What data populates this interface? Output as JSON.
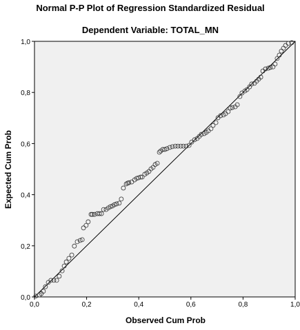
{
  "chart_data": {
    "type": "scatter",
    "title": "Normal P-P Plot of Regression Standardized Residual",
    "subtitle": "Dependent Variable: TOTAL_MN",
    "x_label": "Observed Cum Prob",
    "y_label": "Expected Cum Prob",
    "xlim": [
      0,
      1
    ],
    "ylim": [
      0,
      1
    ],
    "xticks": [
      {
        "value": 0,
        "label": "0,0"
      },
      {
        "value": 0.2,
        "label": "0,2"
      },
      {
        "value": 0.4,
        "label": "0,4"
      },
      {
        "value": 0.6,
        "label": "0,6"
      },
      {
        "value": 0.8,
        "label": "0,8"
      },
      {
        "value": 1,
        "label": "1,0"
      }
    ],
    "yticks": [
      {
        "value": 0,
        "label": "0,0"
      },
      {
        "value": 0.2,
        "label": "0,2"
      },
      {
        "value": 0.4,
        "label": "0,4"
      },
      {
        "value": 0.6,
        "label": "0,6"
      },
      {
        "value": 0.8,
        "label": "0,8"
      },
      {
        "value": 1,
        "label": "1,0"
      }
    ],
    "reference_line": true,
    "color": "#333333",
    "background": "#f0f0f0",
    "series": [
      {
        "x": [
          0.005,
          0.019,
          0.026,
          0.034,
          0.042,
          0.053,
          0.063,
          0.074,
          0.085,
          0.095,
          0.106,
          0.114,
          0.122,
          0.132,
          0.143,
          0.153,
          0.164,
          0.175,
          0.183,
          0.188,
          0.198,
          0.206,
          0.217,
          0.222,
          0.23,
          0.241,
          0.249,
          0.257,
          0.265,
          0.275,
          0.283,
          0.291,
          0.299,
          0.307,
          0.315,
          0.325,
          0.333,
          0.341,
          0.352,
          0.357,
          0.362,
          0.373,
          0.384,
          0.392,
          0.399,
          0.407,
          0.413,
          0.423,
          0.431,
          0.439,
          0.447,
          0.455,
          0.463,
          0.471,
          0.479,
          0.484,
          0.492,
          0.5,
          0.508,
          0.519,
          0.529,
          0.54,
          0.55,
          0.561,
          0.571,
          0.582,
          0.593,
          0.603,
          0.614,
          0.624,
          0.632,
          0.64,
          0.651,
          0.659,
          0.667,
          0.677,
          0.685,
          0.696,
          0.704,
          0.714,
          0.725,
          0.733,
          0.743,
          0.751,
          0.759,
          0.77,
          0.778,
          0.788,
          0.796,
          0.807,
          0.815,
          0.825,
          0.833,
          0.844,
          0.852,
          0.86,
          0.868,
          0.876,
          0.886,
          0.897,
          0.905,
          0.915,
          0.923,
          0.931,
          0.939,
          0.947,
          0.955,
          0.963,
          0.974,
          0.987
        ],
        "values": [
          0.003,
          0.008,
          0.013,
          0.022,
          0.04,
          0.057,
          0.065,
          0.065,
          0.065,
          0.081,
          0.102,
          0.121,
          0.137,
          0.151,
          0.164,
          0.199,
          0.216,
          0.221,
          0.224,
          0.27,
          0.28,
          0.294,
          0.323,
          0.323,
          0.323,
          0.326,
          0.326,
          0.326,
          0.342,
          0.342,
          0.348,
          0.353,
          0.356,
          0.361,
          0.364,
          0.367,
          0.383,
          0.426,
          0.442,
          0.445,
          0.447,
          0.45,
          0.458,
          0.464,
          0.466,
          0.469,
          0.469,
          0.48,
          0.485,
          0.491,
          0.501,
          0.507,
          0.518,
          0.523,
          0.566,
          0.571,
          0.577,
          0.577,
          0.58,
          0.585,
          0.588,
          0.59,
          0.59,
          0.59,
          0.59,
          0.59,
          0.593,
          0.606,
          0.615,
          0.62,
          0.628,
          0.636,
          0.639,
          0.644,
          0.65,
          0.658,
          0.671,
          0.682,
          0.701,
          0.709,
          0.712,
          0.717,
          0.725,
          0.739,
          0.741,
          0.744,
          0.752,
          0.784,
          0.798,
          0.806,
          0.811,
          0.822,
          0.833,
          0.836,
          0.844,
          0.852,
          0.86,
          0.884,
          0.892,
          0.895,
          0.898,
          0.9,
          0.911,
          0.933,
          0.946,
          0.962,
          0.973,
          0.984,
          0.992,
          0.995
        ]
      }
    ]
  }
}
